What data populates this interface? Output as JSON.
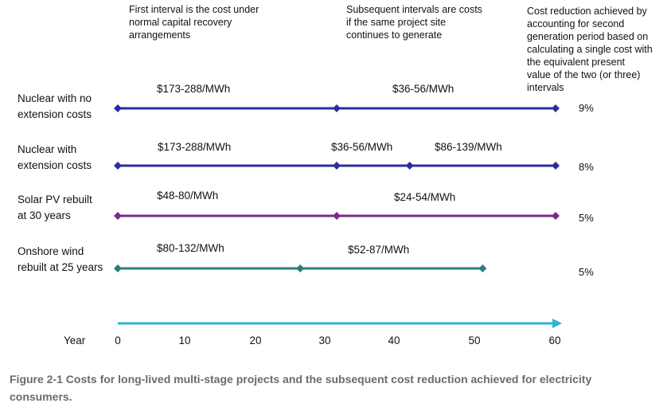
{
  "headers": [
    {
      "text": "First interval is the cost under\nnormal capital recovery\narrangements"
    },
    {
      "text": "Subsequent intervals are costs\nif the same project site\ncontinues to generate"
    },
    {
      "text": "Cost reduction achieved by\naccounting for second\ngeneration period based on\ncalculating a single cost with\nthe equivalent present\nvalue of the two (or three)\nintervals"
    }
  ],
  "rows": [
    {
      "label": "Nuclear with no\nextension costs",
      "color": "#2b2d9e",
      "points": [
        0,
        30,
        60
      ],
      "arrow": false,
      "prices": [
        {
          "text": "$173-288/MWh",
          "at": 10
        },
        {
          "text": "$36-56/MWh",
          "at": 45
        }
      ],
      "reduction": "9%"
    },
    {
      "label": "Nuclear with\nextension costs",
      "color": "#2b2d9e",
      "points": [
        0,
        30,
        40,
        60
      ],
      "arrow": false,
      "prices": [
        {
          "text": "$173-288/MWh",
          "at": 10
        },
        {
          "text": "$36-56/MWh",
          "at": 35
        },
        {
          "text": "$86-139/MWh",
          "at": 50
        }
      ],
      "reduction": "8%"
    },
    {
      "label": "Solar PV rebuilt\nat 30 years",
      "color": "#7a2a8c",
      "points": [
        0,
        30,
        60
      ],
      "arrow": false,
      "prices": [
        {
          "text": "$48-80/MWh",
          "at": 10
        },
        {
          "text": "$24-54/MWh",
          "at": 45
        }
      ],
      "reduction": "5%"
    },
    {
      "label": "Onshore wind\nrebuilt at 25 years",
      "color": "#2a7f7a",
      "points": [
        0,
        25,
        50
      ],
      "arrow": false,
      "prices": [
        {
          "text": "$80-132/MWh",
          "at": 10
        },
        {
          "text": "$52-87/MWh",
          "at": 38
        }
      ],
      "reduction": "5%"
    }
  ],
  "axis": {
    "label": "Year",
    "ticks": [
      "0",
      "10",
      "20",
      "30",
      "40",
      "50",
      "60"
    ],
    "tick_values": [
      0,
      10,
      20,
      30,
      40,
      50,
      60
    ],
    "color": "#2bb4d4"
  },
  "caption": "Figure 2-1 Costs for long-lived multi-stage projects and the subsequent cost reduction achieved for electricity consumers."
}
